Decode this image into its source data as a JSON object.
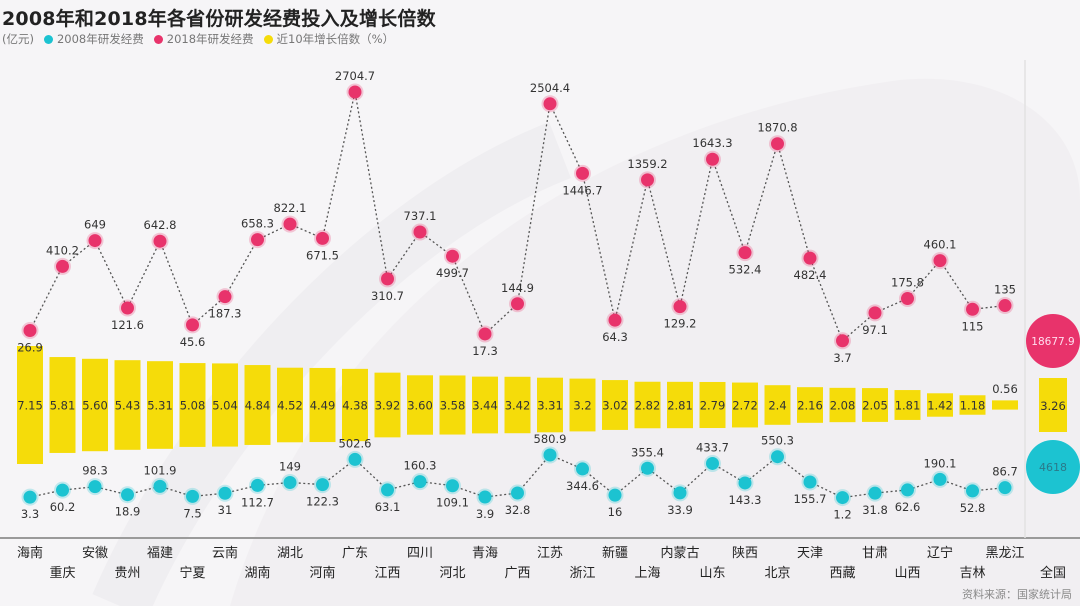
{
  "title": "2008年和2018年各省份研发经费投入及增长倍数",
  "source": "资料来源：国家统计局",
  "colors": {
    "series_2008": "#1cc3d1",
    "series_2018": "#e8336b",
    "growth": "#f5dc0a"
  },
  "chart_data": {
    "type": "line",
    "title": "2008年和2018年各省份研发经费投入及增长倍数",
    "unit_label": "(亿元)",
    "legend_position": "top-left",
    "legend": [
      "2008年研发经费",
      "2018年研发经费",
      "近10年增长倍数（%）"
    ],
    "categories": [
      "海南",
      "重庆",
      "安徽",
      "贵州",
      "福建",
      "宁夏",
      "云南",
      "湖南",
      "湖北",
      "河南",
      "广东",
      "江西",
      "四川",
      "河北",
      "青海",
      "广西",
      "江苏",
      "浙江",
      "新疆",
      "上海",
      "内蒙古",
      "山东",
      "陕西",
      "北京",
      "天津",
      "西藏",
      "甘肃",
      "山西",
      "辽宁",
      "吉林",
      "黑龙江"
    ],
    "series": [
      {
        "name": "2018年研发经费",
        "type": "line",
        "values": [
          26.9,
          410.2,
          649,
          121.6,
          642.8,
          45.6,
          187.3,
          658.3,
          822.1,
          671.5,
          2704.7,
          310.7,
          737.1,
          499.7,
          17.3,
          144.9,
          2504.4,
          1446.7,
          64.3,
          1359.2,
          129.2,
          1643.3,
          532.4,
          1870.8,
          482.4,
          3.7,
          97.1,
          175.8,
          460.1,
          115,
          135
        ]
      },
      {
        "name": "近10年增长倍数（%）",
        "type": "bar",
        "values": [
          7.15,
          5.81,
          5.6,
          5.43,
          5.31,
          5.08,
          5.04,
          4.84,
          4.52,
          4.49,
          4.38,
          3.92,
          3.6,
          3.58,
          3.44,
          3.42,
          3.31,
          3.2,
          3.02,
          2.82,
          2.81,
          2.79,
          2.72,
          2.4,
          2.16,
          2.08,
          2.05,
          1.81,
          1.42,
          1.18,
          0.56
        ],
        "labels": [
          "7.15",
          "5.81",
          "5.60",
          "5.43",
          "5.31",
          "5.08",
          "5.04",
          "4.84",
          "4.52",
          "4.49",
          "4.38",
          "3.92",
          "3.60",
          "3.58",
          "3.44",
          "3.42",
          "3.31",
          "3.2",
          "3.02",
          "2.82",
          "2.81",
          "2.79",
          "2.72",
          "2.4",
          "2.16",
          "2.08",
          "2.05",
          "1.81",
          "1.42",
          "1.18",
          "0.56"
        ]
      },
      {
        "name": "2008年研发经费",
        "type": "line",
        "values": [
          3.3,
          60.2,
          98.3,
          18.9,
          101.9,
          7.5,
          31,
          112.7,
          149,
          122.3,
          502.6,
          63.1,
          160.3,
          109.1,
          3.9,
          32.8,
          580.9,
          344.6,
          16,
          355.4,
          33.9,
          433.7,
          143.3,
          550.3,
          155.7,
          1.2,
          31.8,
          62.6,
          190.1,
          52.8,
          86.7
        ]
      }
    ],
    "national": {
      "label": "全国",
      "value_2018": "18677.9",
      "growth": "3.26",
      "value_2008": "4618"
    }
  }
}
